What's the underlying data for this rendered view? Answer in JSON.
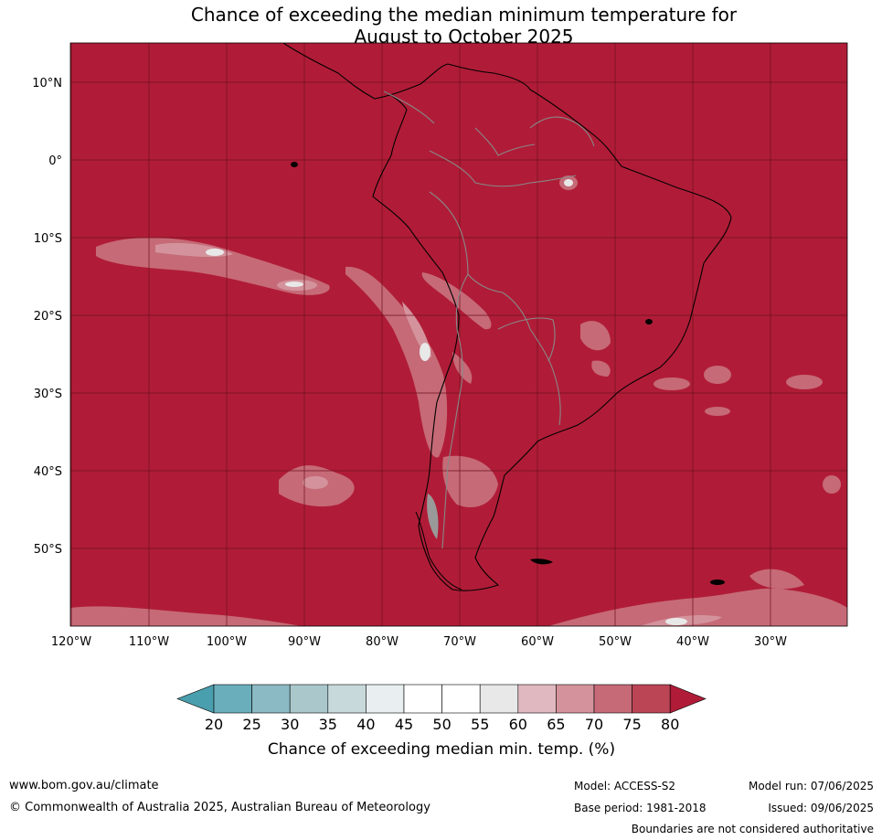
{
  "title_line1": "Chance of exceeding the median minimum temperature for",
  "title_line2": "August to October 2025",
  "map": {
    "lat_labels": [
      "10°N",
      "0°",
      "10°S",
      "20°S",
      "30°S",
      "40°S",
      "50°S"
    ],
    "lon_labels": [
      "120°W",
      "110°W",
      "100°W",
      "90°W",
      "80°W",
      "70°W",
      "60°W",
      "50°W",
      "40°W",
      "30°W"
    ],
    "colors": {
      "ocean_background": "#b01c37",
      "gridline": "#6e1020",
      "coastline": "#000000",
      "border": "#888888"
    }
  },
  "legend": {
    "ticks": [
      "20",
      "25",
      "30",
      "35",
      "40",
      "45",
      "50",
      "55",
      "60",
      "65",
      "70",
      "75",
      "80"
    ],
    "colors": [
      "#4a9fae",
      "#6aaebc",
      "#8bb9c4",
      "#aac8cc",
      "#c8d9db",
      "#e9eff0",
      "#ffffff",
      "#ffffff",
      "#e8e8e8",
      "#dfb9bf",
      "#d4939c",
      "#c66a77",
      "#bb4455",
      "#b01c37"
    ],
    "label": "Chance of exceeding median min. temp. (%)"
  },
  "footer": {
    "url": "www.bom.gov.au/climate",
    "copyright": "© Commonwealth of Australia 2025, Australian Bureau of Meteorology",
    "model": "Model: ACCESS-S2",
    "base_period": "Base period: 1981-2018",
    "model_run": "Model run: 07/06/2025",
    "issued": "Issued: 09/06/2025",
    "disclaimer": "Boundaries are not considered authoritative"
  }
}
